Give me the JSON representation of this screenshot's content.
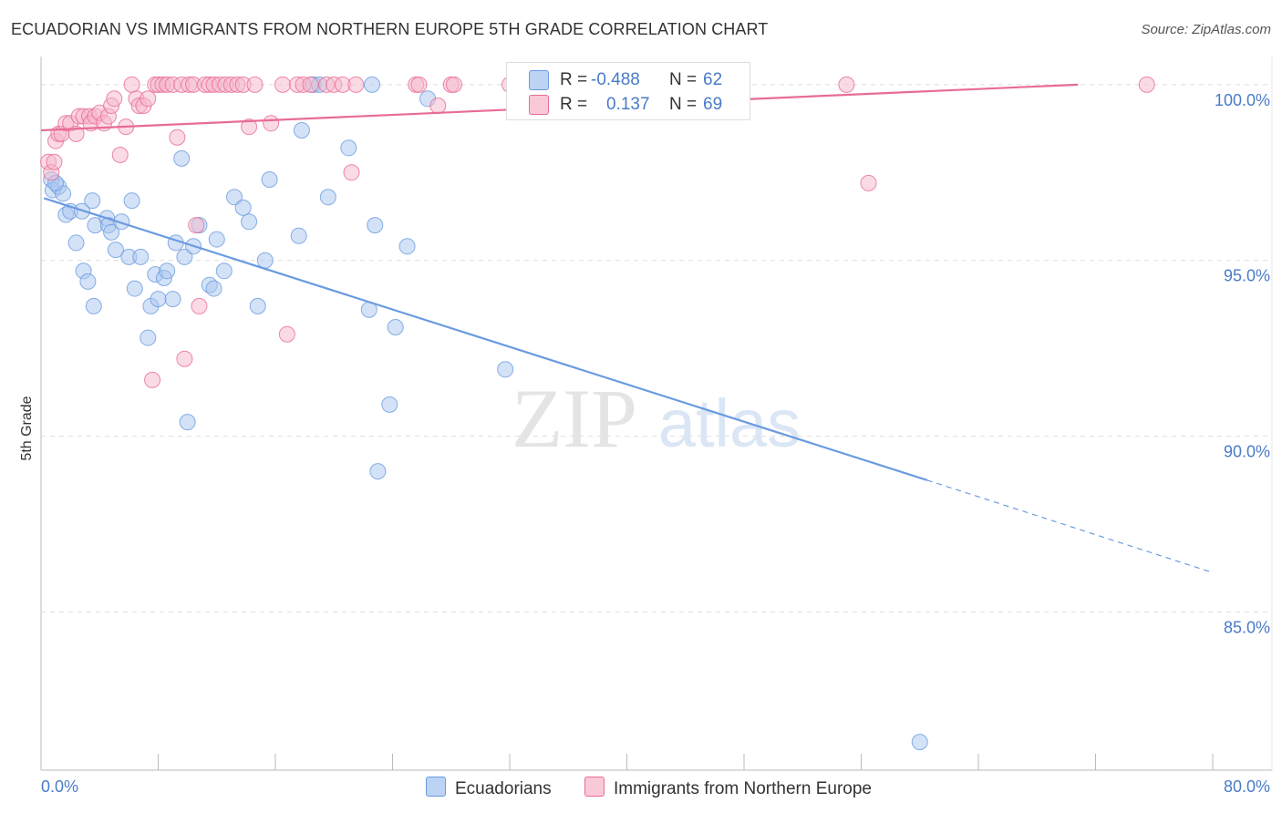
{
  "header": {
    "title": "ECUADORIAN VS IMMIGRANTS FROM NORTHERN EUROPE 5TH GRADE CORRELATION CHART",
    "source": "Source: ZipAtlas.com"
  },
  "watermark": {
    "zip": "ZIP",
    "atlas": "atlas"
  },
  "legend": {
    "rows": [
      {
        "r_label": "R =",
        "r_value": "-0.488",
        "n_label": "N =",
        "n_value": "62",
        "color": "#a9c6f0"
      },
      {
        "r_label": "R =",
        "r_value": "0.137",
        "n_label": "N =",
        "n_value": "69",
        "color": "#f6b7cb"
      }
    ]
  },
  "bottom_legend": {
    "series1": "Ecuadorians",
    "series2": "Immigrants from Northern Europe"
  },
  "chart_data": {
    "type": "scatter",
    "title": "ECUADORIAN VS IMMIGRANTS FROM NORTHERN EUROPE 5TH GRADE CORRELATION CHART",
    "xlabel": "",
    "ylabel": "5th Grade",
    "xlim": [
      0,
      80
    ],
    "ylim": [
      80.5,
      100.8
    ],
    "x_tick_labels": [
      "0.0%",
      "80.0%"
    ],
    "y_ticks": [
      85,
      90,
      95,
      100
    ],
    "y_tick_labels": [
      "85.0%",
      "90.0%",
      "95.0%",
      "100.0%"
    ],
    "grid": true,
    "legend_position": "top-center",
    "series": [
      {
        "name": "Ecuadorians",
        "color": "#6a9be0",
        "fill": "#a9c6f0",
        "r": -0.488,
        "n": 62,
        "trend": {
          "x0": 0.2,
          "y0": 96.77,
          "x1": 60.5,
          "y1": 88.75,
          "dash_x1": 80.0,
          "dash_y1": 86.12
        },
        "points": [
          [
            0.7,
            97.3
          ],
          [
            0.8,
            97.0
          ],
          [
            1.2,
            97.1
          ],
          [
            1.5,
            96.9
          ],
          [
            1.7,
            96.3
          ],
          [
            2.0,
            96.4
          ],
          [
            2.4,
            95.5
          ],
          [
            2.8,
            96.4
          ],
          [
            2.9,
            94.7
          ],
          [
            3.2,
            94.4
          ],
          [
            3.5,
            96.7
          ],
          [
            3.7,
            96.0
          ],
          [
            3.6,
            93.7
          ],
          [
            4.5,
            96.2
          ],
          [
            4.6,
            96.0
          ],
          [
            4.8,
            95.8
          ],
          [
            5.5,
            96.1
          ],
          [
            5.1,
            95.3
          ],
          [
            6.0,
            95.1
          ],
          [
            6.2,
            96.7
          ],
          [
            6.4,
            94.2
          ],
          [
            6.8,
            95.1
          ],
          [
            7.3,
            92.8
          ],
          [
            7.5,
            93.7
          ],
          [
            7.8,
            94.6
          ],
          [
            8.0,
            93.9
          ],
          [
            8.4,
            94.5
          ],
          [
            8.6,
            94.7
          ],
          [
            9.0,
            93.9
          ],
          [
            9.2,
            95.5
          ],
          [
            9.6,
            97.9
          ],
          [
            9.8,
            95.1
          ],
          [
            10.0,
            90.4
          ],
          [
            10.4,
            95.4
          ],
          [
            10.8,
            96.0
          ],
          [
            11.5,
            94.3
          ],
          [
            11.8,
            94.2
          ],
          [
            12.0,
            95.6
          ],
          [
            12.5,
            94.7
          ],
          [
            13.2,
            96.8
          ],
          [
            13.8,
            96.5
          ],
          [
            14.2,
            96.1
          ],
          [
            14.8,
            93.7
          ],
          [
            15.3,
            95.0
          ],
          [
            15.6,
            97.3
          ],
          [
            17.6,
            95.7
          ],
          [
            17.8,
            98.7
          ],
          [
            18.6,
            100.0
          ],
          [
            19.0,
            100.0
          ],
          [
            19.6,
            96.8
          ],
          [
            21.0,
            98.2
          ],
          [
            22.4,
            93.6
          ],
          [
            22.6,
            100.0
          ],
          [
            22.8,
            96.0
          ],
          [
            23.0,
            89.0
          ],
          [
            23.8,
            90.9
          ],
          [
            24.2,
            93.1
          ],
          [
            25.0,
            95.4
          ],
          [
            26.4,
            99.6
          ],
          [
            31.7,
            91.9
          ],
          [
            60.0,
            81.3
          ],
          [
            1.0,
            97.2
          ]
        ]
      },
      {
        "name": "Immigrants from Northern Europe",
        "color": "#e86c93",
        "fill": "#f6b7cb",
        "r": 0.137,
        "n": 69,
        "trend": {
          "x0": 0.0,
          "y0": 98.7,
          "x1": 70.8,
          "y1": 100.0
        },
        "points": [
          [
            0.5,
            97.8
          ],
          [
            0.7,
            97.5
          ],
          [
            0.9,
            97.8
          ],
          [
            1.0,
            98.4
          ],
          [
            1.2,
            98.6
          ],
          [
            1.4,
            98.6
          ],
          [
            1.7,
            98.9
          ],
          [
            2.0,
            98.9
          ],
          [
            2.4,
            98.6
          ],
          [
            2.6,
            99.1
          ],
          [
            2.9,
            99.1
          ],
          [
            3.3,
            99.1
          ],
          [
            3.4,
            98.9
          ],
          [
            3.7,
            99.1
          ],
          [
            4.0,
            99.2
          ],
          [
            4.3,
            98.9
          ],
          [
            4.6,
            99.1
          ],
          [
            4.8,
            99.4
          ],
          [
            5.0,
            99.6
          ],
          [
            5.4,
            98.0
          ],
          [
            5.8,
            98.8
          ],
          [
            6.2,
            100.0
          ],
          [
            6.5,
            99.6
          ],
          [
            6.7,
            99.4
          ],
          [
            7.0,
            99.4
          ],
          [
            7.3,
            99.6
          ],
          [
            7.6,
            91.6
          ],
          [
            7.8,
            100.0
          ],
          [
            8.0,
            100.0
          ],
          [
            8.3,
            100.0
          ],
          [
            8.6,
            100.0
          ],
          [
            9.0,
            100.0
          ],
          [
            9.3,
            98.5
          ],
          [
            9.6,
            100.0
          ],
          [
            9.8,
            92.2
          ],
          [
            10.1,
            100.0
          ],
          [
            10.4,
            100.0
          ],
          [
            10.6,
            96.0
          ],
          [
            10.8,
            93.7
          ],
          [
            11.2,
            100.0
          ],
          [
            11.5,
            100.0
          ],
          [
            11.8,
            100.0
          ],
          [
            12.2,
            100.0
          ],
          [
            12.6,
            100.0
          ],
          [
            13.0,
            100.0
          ],
          [
            13.4,
            100.0
          ],
          [
            13.8,
            100.0
          ],
          [
            14.2,
            98.8
          ],
          [
            14.6,
            100.0
          ],
          [
            15.7,
            98.9
          ],
          [
            16.5,
            100.0
          ],
          [
            16.8,
            92.9
          ],
          [
            17.5,
            100.0
          ],
          [
            17.9,
            100.0
          ],
          [
            18.4,
            100.0
          ],
          [
            19.5,
            100.0
          ],
          [
            20.0,
            100.0
          ],
          [
            20.6,
            100.0
          ],
          [
            21.2,
            97.5
          ],
          [
            21.5,
            100.0
          ],
          [
            25.6,
            100.0
          ],
          [
            25.8,
            100.0
          ],
          [
            27.1,
            99.4
          ],
          [
            28.0,
            100.0
          ],
          [
            28.2,
            100.0
          ],
          [
            32.0,
            100.0
          ],
          [
            55.0,
            100.0
          ],
          [
            56.5,
            97.2
          ],
          [
            75.5,
            100.0
          ]
        ]
      }
    ]
  }
}
